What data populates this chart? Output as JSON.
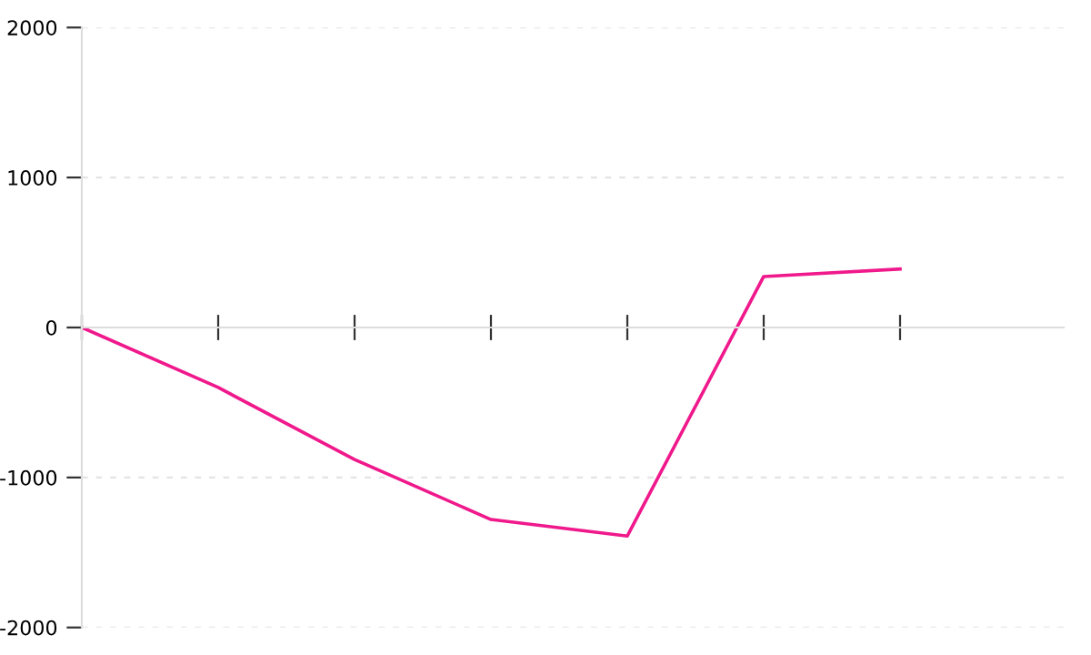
{
  "chart_data": {
    "type": "line",
    "categories": [
      null,
      null,
      null,
      null,
      null,
      null,
      null
    ],
    "series": [
      {
        "color": "#f0198c",
        "values": [
          0,
          -400,
          -880,
          -1280,
          -1390,
          340,
          390
        ]
      }
    ],
    "ylim": [
      -2000,
      2000
    ],
    "yticks": [
      -2000,
      -1000,
      0,
      1000,
      2000
    ],
    "grid": "y",
    "tick_labels": "y",
    "marker": "none",
    "line_style": "solid"
  }
}
